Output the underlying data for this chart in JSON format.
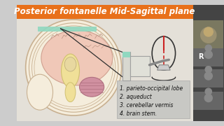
{
  "title": "Posterior fontanelle Mid-Sagittal plane",
  "title_color": "#FFFFFF",
  "title_bg_color": "#E8701A",
  "bg_color": "#CCCCCC",
  "main_bg": "#E0DDD8",
  "list_items": [
    "1. parieto-occipital lobe",
    "2. aqueduct",
    "3. cerebellar vermis",
    "4. brain stem."
  ],
  "list_fontsize": 5.5,
  "list_color": "#111111",
  "list_bg": "#C0C0C0",
  "r_badge_color": "#E91E8C",
  "r_badge_text": "R",
  "right_panel_color": "#555555",
  "figsize": [
    3.2,
    1.8
  ],
  "dpi": 100
}
